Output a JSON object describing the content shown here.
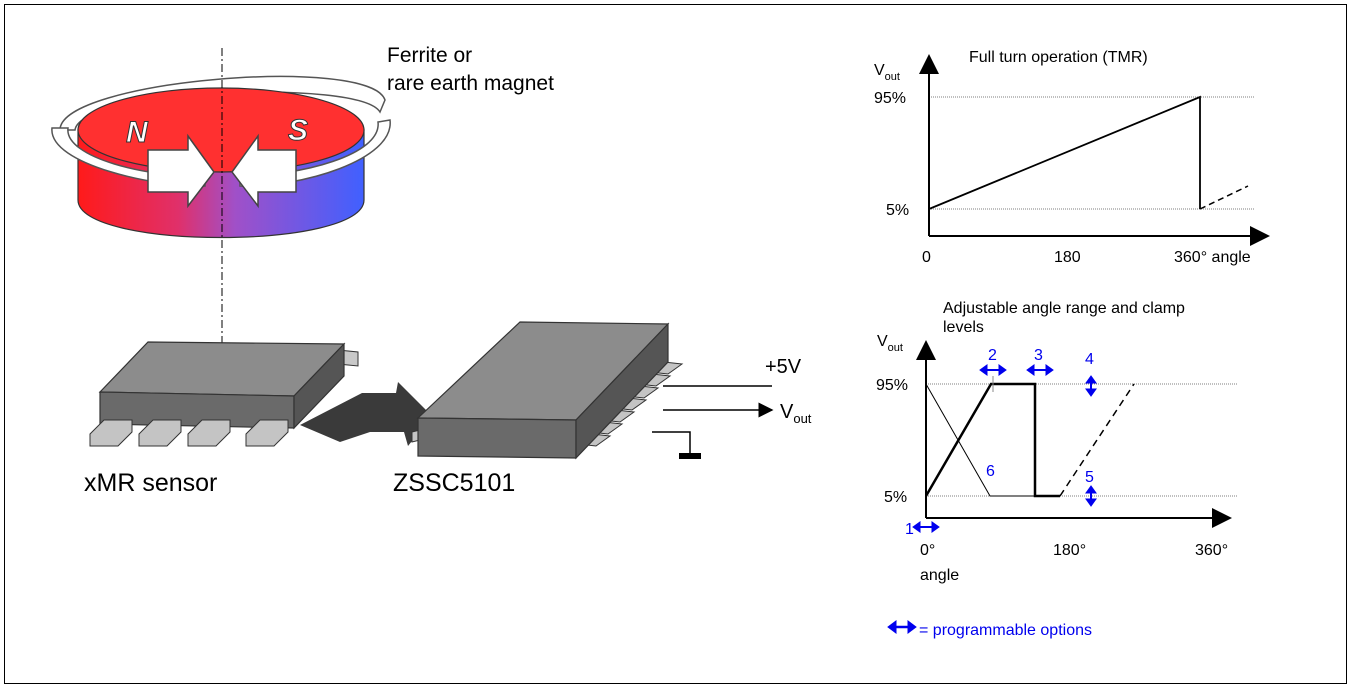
{
  "magnet": {
    "label_line1": "Ferrite or",
    "label_line2": "rare earth magnet",
    "pole_north": "N",
    "pole_south": "S"
  },
  "sensor": {
    "label": "xMR sensor"
  },
  "ic": {
    "label": "ZSSC5101",
    "supply": "+5V",
    "output_main": "V",
    "output_sub": "out"
  },
  "chart_top": {
    "title": "Full turn operation (TMR)",
    "ylabel_main": "V",
    "ylabel_sub": "out",
    "y_ticks": [
      "95%",
      "5%"
    ],
    "x_ticks": [
      "0",
      "180",
      "360° angle"
    ]
  },
  "chart_bottom": {
    "title_line1": "Adjustable angle range and clamp",
    "title_line2": "levels",
    "ylabel_main": "V",
    "ylabel_sub": "out",
    "y_ticks": [
      "95%",
      "5%"
    ],
    "x_ticks": [
      "0°",
      "180°",
      "360°"
    ],
    "x_tick_extra": "angle",
    "options": [
      "1",
      "2",
      "3",
      "4",
      "5",
      "6"
    ]
  },
  "legend": {
    "text": "= programmable options"
  },
  "chart_data": [
    {
      "type": "line",
      "title": "Full turn operation (TMR)",
      "ylabel": "Vout",
      "xlabel": "angle",
      "x_ticks": [
        "0",
        "180",
        "360°"
      ],
      "y_ticks": [
        "5%",
        "95%"
      ],
      "series": [
        {
          "x": [
            0,
            360,
            360
          ],
          "y": [
            5,
            95,
            5
          ]
        },
        {
          "style": "dashed",
          "x": [
            360,
            405
          ],
          "y": [
            5,
            23
          ]
        }
      ]
    },
    {
      "type": "line",
      "title": "Adjustable angle range and clamp levels",
      "ylabel": "Vout",
      "xlabel": "angle",
      "x_ticks": [
        "0°",
        "180°",
        "360°"
      ],
      "y_ticks": [
        "5%",
        "95%"
      ],
      "series": [
        {
          "x": [
            0,
            72,
            118,
            118,
            142
          ],
          "y": [
            5,
            95,
            95,
            5,
            5
          ]
        },
        {
          "style": "thin",
          "x": [
            0,
            72,
            142
          ],
          "y": [
            95,
            5,
            5
          ]
        },
        {
          "style": "dashed",
          "x": [
            142,
            219
          ],
          "y": [
            5,
            95
          ]
        }
      ]
    }
  ],
  "colors": {
    "option_blue": "#0000ee",
    "magnet_red": "#ff1a1a",
    "magnet_blue": "#4060ff",
    "chip_gray": "#7a7a7a"
  }
}
